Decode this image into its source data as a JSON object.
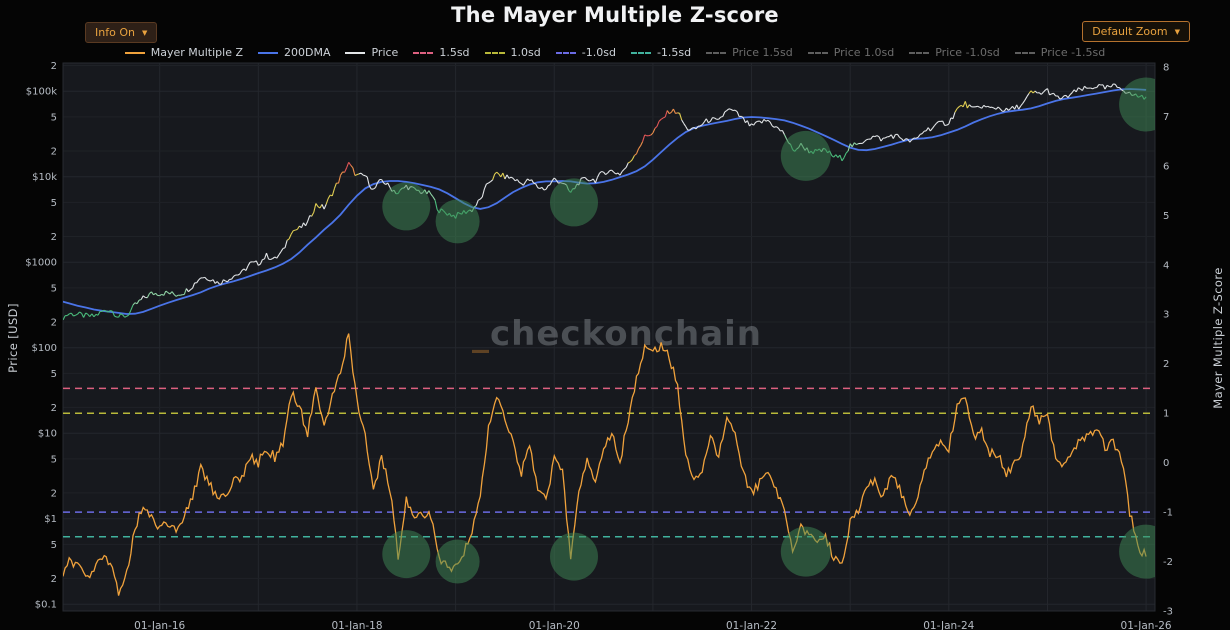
{
  "header": {
    "title": "The Mayer Multiple Z-score",
    "info_button": {
      "label": "Info On",
      "arrow": "▼"
    },
    "zoom_button": {
      "label": "Default Zoom",
      "arrow": "▼"
    }
  },
  "watermark": {
    "prefix": "_",
    "text": "checkonchain"
  },
  "legend": {
    "items": [
      {
        "label": "Mayer Multiple Z",
        "color": "#f0a23c",
        "dash": false,
        "active": true
      },
      {
        "label": "200DMA",
        "color": "#4a74e8",
        "dash": false,
        "active": true
      },
      {
        "label": "Price",
        "color": "#e3e6e8",
        "dash": false,
        "active": true
      },
      {
        "label": "1.5sd",
        "color": "#dd6080",
        "dash": true,
        "active": true
      },
      {
        "label": "1.0sd",
        "color": "#b9b93a",
        "dash": true,
        "active": true
      },
      {
        "label": "-1.0sd",
        "color": "#6b6be4",
        "dash": true,
        "active": true
      },
      {
        "label": "-1.5sd",
        "color": "#41b39e",
        "dash": true,
        "active": true
      },
      {
        "label": "Price 1.5sd",
        "color": "#5f5f5f",
        "dash": true,
        "active": false
      },
      {
        "label": "Price 1.0sd",
        "color": "#5f5f5f",
        "dash": true,
        "active": false
      },
      {
        "label": "Price -1.0sd",
        "color": "#5f5f5f",
        "dash": true,
        "active": false
      },
      {
        "label": "Price -1.5sd",
        "color": "#5f5f5f",
        "dash": true,
        "active": false
      }
    ]
  },
  "axes": {
    "left": {
      "title": "Price [USD]",
      "ticks": [
        {
          "v": 200000,
          "label": "2"
        },
        {
          "v": 100000,
          "label": "$100k"
        },
        {
          "v": 50000,
          "label": "5"
        },
        {
          "v": 20000,
          "label": "2"
        },
        {
          "v": 10000,
          "label": "$10k"
        },
        {
          "v": 5000,
          "label": "5"
        },
        {
          "v": 2000,
          "label": "2"
        },
        {
          "v": 1000,
          "label": "$1000"
        },
        {
          "v": 500,
          "label": "5"
        },
        {
          "v": 200,
          "label": "2"
        },
        {
          "v": 100,
          "label": "$100"
        },
        {
          "v": 50,
          "label": "5"
        },
        {
          "v": 20,
          "label": "2"
        },
        {
          "v": 10,
          "label": "$10"
        },
        {
          "v": 5,
          "label": "5"
        },
        {
          "v": 2,
          "label": "2"
        },
        {
          "v": 1,
          "label": "$1"
        },
        {
          "v": 0.5,
          "label": "5"
        },
        {
          "v": 0.2,
          "label": "2"
        },
        {
          "v": 0.1,
          "label": "$0.1"
        }
      ]
    },
    "right": {
      "title": "Mayer Multiple Z-Score",
      "ticks": [
        {
          "v": 8,
          "label": "8"
        },
        {
          "v": 7,
          "label": "7"
        },
        {
          "v": 6,
          "label": "6"
        },
        {
          "v": 5,
          "label": "5"
        },
        {
          "v": 4,
          "label": "4"
        },
        {
          "v": 3,
          "label": "3"
        },
        {
          "v": 2,
          "label": "2"
        },
        {
          "v": 1,
          "label": "1"
        },
        {
          "v": 0,
          "label": "0"
        },
        {
          "v": -1,
          "label": "-1"
        },
        {
          "v": -2,
          "label": "-2"
        },
        {
          "v": -3,
          "label": "-3"
        }
      ]
    },
    "x": {
      "ticks": [
        {
          "t": 2016,
          "label": "01-Jan-16"
        },
        {
          "t": 2018,
          "label": "01-Jan-18"
        },
        {
          "t": 2020,
          "label": "01-Jan-20"
        },
        {
          "t": 2022,
          "label": "01-Jan-22"
        },
        {
          "t": 2024,
          "label": "01-Jan-24"
        },
        {
          "t": 2026,
          "label": "01-Jan-26"
        }
      ]
    }
  },
  "chart_data": {
    "type": "line",
    "title": "The Mayer Multiple Z-score",
    "x_unit": "decimal_year_monthly",
    "x_start": 2015.0,
    "x_step": 0.0833333,
    "x_range": [
      2015.02,
      2026.09
    ],
    "price_log_range": [
      -1.08,
      5.33
    ],
    "z_range": [
      -3.0,
      8.08
    ],
    "grid_years": [
      2015,
      2016,
      2017,
      2018,
      2019,
      2020,
      2021,
      2022,
      2023,
      2024,
      2025,
      2026
    ],
    "series": [
      {
        "name": "Price",
        "axis": "price",
        "color": "#e3e6e8",
        "values": [
          220,
          250,
          245,
          235,
          232,
          263,
          280,
          230,
          236,
          314,
          377,
          430,
          433,
          437,
          416,
          448,
          531,
          673,
          655,
          577,
          609,
          700,
          745,
          963,
          970,
          1190,
          1080,
          1350,
          2300,
          2480,
          2870,
          4700,
          4340,
          6450,
          9900,
          14100,
          10200,
          10300,
          6920,
          9240,
          7500,
          6400,
          7750,
          7020,
          6600,
          6300,
          4020,
          3740,
          3460,
          3850,
          4100,
          5350,
          8550,
          10800,
          10000,
          9600,
          8300,
          9150,
          7550,
          7200,
          9350,
          8550,
          6440,
          8620,
          9450,
          9140,
          11350,
          11650,
          10780,
          13800,
          19700,
          29000,
          33100,
          45200,
          58800,
          57750,
          37300,
          35000,
          41500,
          47100,
          43800,
          61300,
          57000,
          46200,
          38500,
          43200,
          45500,
          37650,
          31800,
          19950,
          23300,
          20050,
          19400,
          20500,
          17150,
          16550,
          23100,
          23150,
          28500,
          29250,
          27200,
          30450,
          29230,
          25930,
          26950,
          34650,
          37700,
          42250,
          42950,
          61200,
          71300,
          60640,
          67500,
          62680,
          64600,
          58970,
          63300,
          70200,
          96400,
          93400,
          102400,
          84350,
          82550,
          94200,
          104600,
          107100,
          115800,
          108200,
          114000,
          110100,
          92000,
          88000,
          86000
        ]
      },
      {
        "name": "200DMA",
        "axis": "price",
        "color": "#4a74e8",
        "values": [
          350,
          330,
          310,
          295,
          280,
          270,
          262,
          255,
          248,
          250,
          262,
          285,
          310,
          335,
          360,
          385,
          412,
          445,
          490,
          530,
          565,
          600,
          640,
          690,
          745,
          800,
          870,
          960,
          1090,
          1300,
          1600,
          1950,
          2400,
          2900,
          3600,
          4700,
          6000,
          7300,
          8200,
          8700,
          8900,
          8900,
          8700,
          8400,
          8000,
          7600,
          7100,
          6400,
          5600,
          4900,
          4400,
          4200,
          4400,
          4900,
          5700,
          6600,
          7400,
          8100,
          8600,
          8800,
          8800,
          8900,
          8800,
          8500,
          8300,
          8400,
          8700,
          9200,
          9900,
          10600,
          11600,
          13200,
          15800,
          19400,
          23700,
          28500,
          33300,
          37000,
          39500,
          41400,
          43200,
          45000,
          47300,
          49200,
          49900,
          49400,
          48300,
          47200,
          45500,
          42800,
          39600,
          36400,
          33100,
          29900,
          27000,
          24200,
          21900,
          20600,
          20400,
          21100,
          22300,
          23700,
          25300,
          26900,
          27700,
          28100,
          28900,
          30500,
          32800,
          35300,
          38800,
          43000,
          47000,
          51000,
          54500,
          57400,
          59200,
          60700,
          63000,
          67000,
          72000,
          77000,
          81000,
          84000,
          87000,
          90500,
          94000,
          98000,
          102000,
          105000,
          106000,
          105000,
          103500
        ]
      },
      {
        "name": "Mayer Multiple Z",
        "axis": "z",
        "color": "#f0a23c",
        "values": [
          -2.3,
          -2.0,
          -2.1,
          -2.3,
          -2.2,
          -1.9,
          -2.0,
          -2.6,
          -2.2,
          -1.3,
          -0.9,
          -1.1,
          -1.3,
          -1.2,
          -1.4,
          -1.1,
          -0.7,
          -0.1,
          -0.4,
          -0.7,
          -0.6,
          -0.4,
          -0.3,
          0.1,
          0.0,
          0.3,
          0.1,
          0.4,
          1.4,
          1.1,
          0.6,
          1.5,
          0.8,
          1.3,
          1.8,
          2.6,
          1.2,
          0.6,
          -0.6,
          0.1,
          -0.5,
          -1.9,
          -0.7,
          -1.2,
          -1.0,
          -1.1,
          -2.0,
          -2.1,
          -2.1,
          -1.8,
          -1.4,
          -0.7,
          0.7,
          1.4,
          0.9,
          0.4,
          -0.2,
          0.3,
          -0.5,
          -0.8,
          0.1,
          -0.2,
          -1.9,
          -0.5,
          0.0,
          -0.3,
          0.3,
          0.6,
          0.0,
          0.9,
          1.7,
          2.3,
          2.2,
          2.4,
          2.1,
          1.6,
          0.1,
          -0.3,
          -0.1,
          0.5,
          0.1,
          0.9,
          0.6,
          -0.2,
          -0.6,
          -0.4,
          -0.1,
          -0.6,
          -1.0,
          -1.8,
          -1.3,
          -1.5,
          -1.6,
          -1.5,
          -1.9,
          -2.0,
          -1.2,
          -1.0,
          -0.5,
          -0.4,
          -0.7,
          -0.3,
          -0.5,
          -1.0,
          -0.9,
          -0.1,
          0.2,
          0.5,
          0.3,
          1.1,
          1.4,
          0.5,
          0.6,
          0.2,
          0.2,
          -0.2,
          0.0,
          0.3,
          1.2,
          0.8,
          1.0,
          0.1,
          -0.1,
          0.2,
          0.5,
          0.5,
          0.7,
          0.3,
          0.4,
          0.1,
          -1.0,
          -1.7,
          -1.9
        ]
      }
    ],
    "threshold_lines": [
      {
        "name": "1.5sd",
        "axis": "z",
        "value": 1.5,
        "color": "#dd6080",
        "dash": true
      },
      {
        "name": "1.0sd",
        "axis": "z",
        "value": 1.0,
        "color": "#b9b93a",
        "dash": true
      },
      {
        "name": "-1.0sd",
        "axis": "z",
        "value": -1.0,
        "color": "#6b6be4",
        "dash": true
      },
      {
        "name": "-1.5sd",
        "axis": "z",
        "value": -1.5,
        "color": "#41b39e",
        "dash": true
      }
    ],
    "highlight_markers": [
      {
        "x": 2018.5,
        "price": 4500,
        "z": -1.85,
        "r": 24
      },
      {
        "x": 2019.02,
        "price": 3000,
        "z": -2.0,
        "r": 22
      },
      {
        "x": 2020.2,
        "price": 5000,
        "z": -1.9,
        "r": 24
      },
      {
        "x": 2022.55,
        "price": 17500,
        "z": -1.8,
        "r": 25
      },
      {
        "x": 2026.0,
        "price": 70000,
        "z": -1.8,
        "r": 27
      }
    ],
    "marker_style": {
      "color": "#3f8a55",
      "opacity": 0.5
    },
    "legend_position": "top-center",
    "grid": true
  }
}
